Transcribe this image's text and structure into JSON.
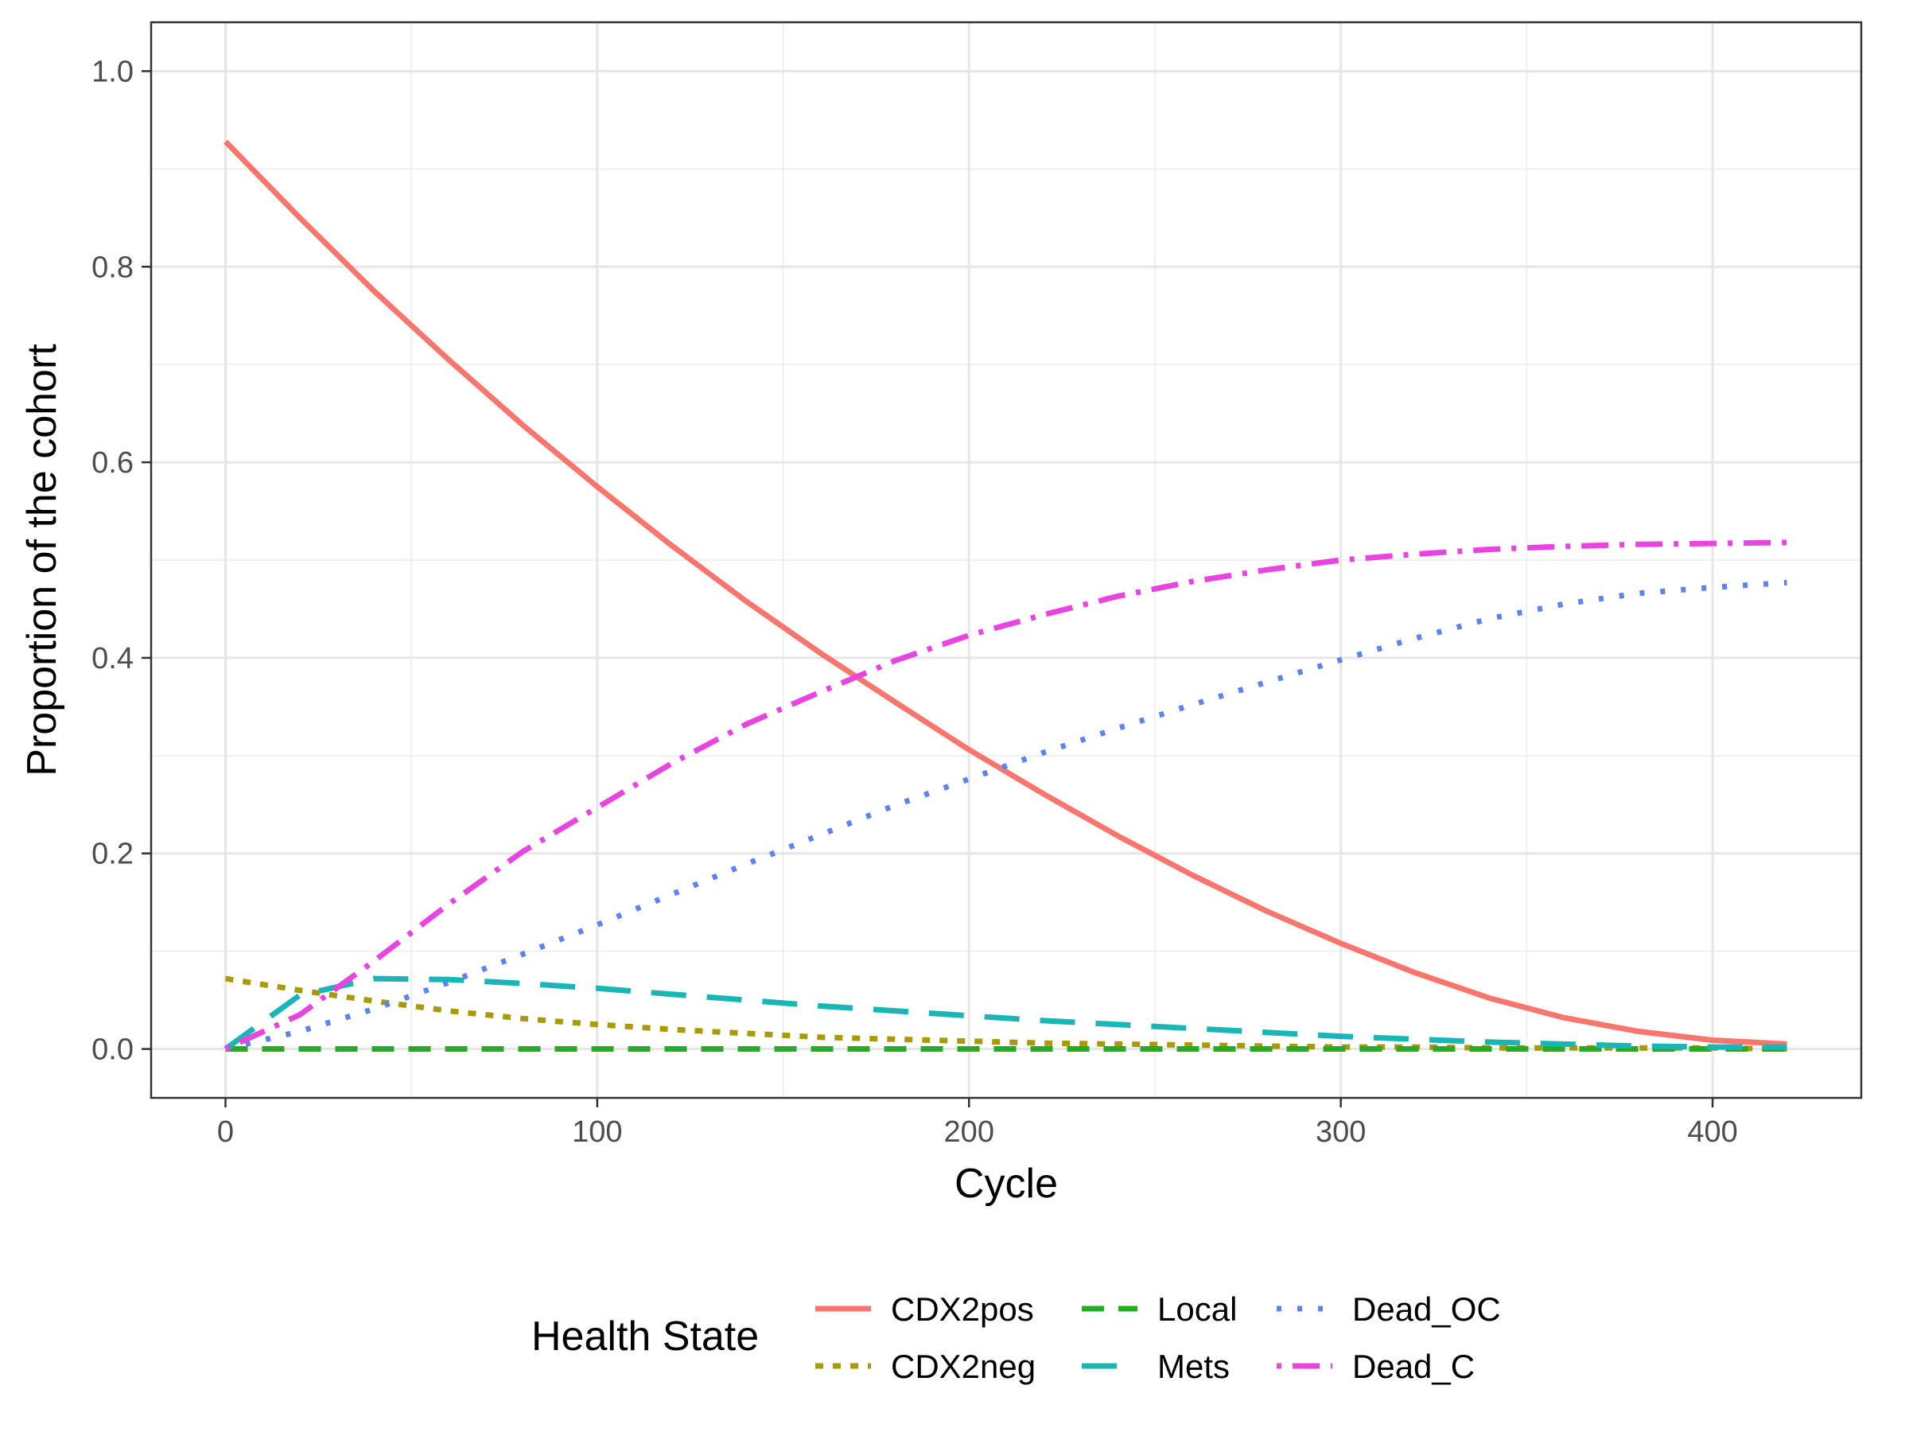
{
  "chart_data": {
    "type": "line",
    "title": "",
    "xlabel": "Cycle",
    "ylabel": "Proportion of the cohort",
    "xlim": [
      -20,
      440
    ],
    "ylim": [
      -0.05,
      1.05
    ],
    "x_ticks": [
      0,
      100,
      200,
      300,
      400
    ],
    "y_ticks": [
      0.0,
      0.2,
      0.4,
      0.6,
      0.8,
      1.0
    ],
    "x_tick_labels": [
      "0",
      "100",
      "200",
      "300",
      "400"
    ],
    "y_tick_labels": [
      "0.0",
      "0.2",
      "0.4",
      "0.6",
      "0.8",
      "1.0"
    ],
    "grid": true,
    "legend": {
      "title": "Health State",
      "position": "bottom"
    },
    "x": [
      0,
      20,
      40,
      60,
      80,
      100,
      120,
      140,
      160,
      180,
      200,
      220,
      240,
      260,
      280,
      300,
      320,
      340,
      360,
      380,
      400,
      420
    ],
    "series": [
      {
        "name": "CDX2pos",
        "color": "#F8766D",
        "dash": "solid",
        "values": [
          0.928,
          0.85,
          0.775,
          0.705,
          0.638,
          0.575,
          0.515,
          0.458,
          0.405,
          0.355,
          0.306,
          0.261,
          0.218,
          0.178,
          0.141,
          0.108,
          0.078,
          0.052,
          0.032,
          0.018,
          0.009,
          0.005
        ]
      },
      {
        "name": "CDX2neg",
        "color": "#A89A0A",
        "dash": "dotted",
        "values": [
          0.072,
          0.06,
          0.049,
          0.039,
          0.031,
          0.025,
          0.02,
          0.016,
          0.012,
          0.01,
          0.008,
          0.006,
          0.005,
          0.004,
          0.003,
          0.002,
          0.002,
          0.001,
          0.001,
          0.001,
          0.001,
          0.0
        ]
      },
      {
        "name": "Local",
        "color": "#1FAF1F",
        "dash": "dash-long",
        "values": [
          0.0,
          0.0,
          0.0,
          0.0,
          0.0,
          0.0,
          0.0,
          0.0,
          0.0,
          0.0,
          0.0,
          0.0,
          0.0,
          0.0,
          0.0,
          0.0,
          0.0,
          0.0,
          0.0,
          0.0,
          0.0,
          0.0
        ]
      },
      {
        "name": "Mets",
        "color": "#1AB6B6",
        "dash": "dashed",
        "values": [
          0.0,
          0.055,
          0.072,
          0.071,
          0.067,
          0.062,
          0.056,
          0.05,
          0.044,
          0.039,
          0.034,
          0.029,
          0.025,
          0.021,
          0.017,
          0.013,
          0.01,
          0.007,
          0.005,
          0.003,
          0.002,
          0.002
        ]
      },
      {
        "name": "Dead_OC",
        "color": "#5B84F0",
        "dash": "dots",
        "values": [
          0.0,
          0.018,
          0.041,
          0.068,
          0.097,
          0.127,
          0.158,
          0.189,
          0.219,
          0.249,
          0.276,
          0.303,
          0.328,
          0.352,
          0.375,
          0.398,
          0.42,
          0.44,
          0.455,
          0.466,
          0.472,
          0.477
        ]
      },
      {
        "name": "Dead_C",
        "color": "#E845E0",
        "dash": "dotdash",
        "values": [
          0.0,
          0.035,
          0.09,
          0.148,
          0.202,
          0.247,
          0.292,
          0.332,
          0.365,
          0.397,
          0.423,
          0.444,
          0.463,
          0.478,
          0.49,
          0.5,
          0.506,
          0.511,
          0.514,
          0.516,
          0.517,
          0.518
        ]
      }
    ]
  }
}
